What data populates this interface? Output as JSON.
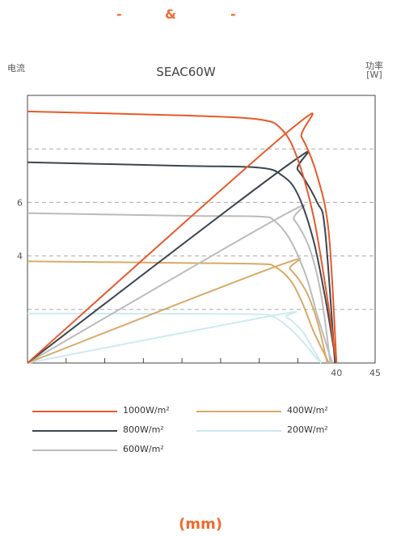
{
  "header": {
    "left": "-",
    "mid": "&",
    "right": "-"
  },
  "chart_data": {
    "type": "line",
    "title": "SEAC60W",
    "ylabel": "电流",
    "y2label": "功率\n[W]",
    "y_ticks": [
      {
        "value": 4,
        "label": "4"
      },
      {
        "value": 6,
        "label": "6"
      }
    ],
    "x_ticks": [
      {
        "value": 40,
        "label": "40"
      },
      {
        "value": 45,
        "label": "45"
      }
    ],
    "xlim": [
      0,
      45
    ],
    "ylim": [
      0,
      10
    ],
    "y2lim": [
      0,
      70
    ],
    "grid": "dashed-horizontal",
    "legend_placement": "bottom",
    "series": [
      {
        "name": "1000W/m²",
        "color": "#e8592a",
        "iv": [
          [
            0,
            9.4
          ],
          [
            20,
            9.25
          ],
          [
            30,
            9.1
          ],
          [
            33,
            8.7
          ],
          [
            35,
            7.6
          ],
          [
            37,
            5.5
          ],
          [
            38.5,
            3.0
          ],
          [
            39.5,
            1.0
          ],
          [
            40,
            0
          ]
        ],
        "pv": [
          [
            0,
            0
          ],
          [
            34,
            61
          ],
          [
            35.5,
            59
          ],
          [
            37.5,
            49
          ],
          [
            39,
            34
          ],
          [
            40,
            0
          ]
        ]
      },
      {
        "name": "800W/m²",
        "color": "#3a4650",
        "iv": [
          [
            0,
            7.5
          ],
          [
            20,
            7.37
          ],
          [
            30,
            7.3
          ],
          [
            33,
            7.0
          ],
          [
            35,
            6.3
          ],
          [
            37,
            4.6
          ],
          [
            38.5,
            2.5
          ],
          [
            39.5,
            0.8
          ],
          [
            40,
            0
          ]
        ],
        "pv": [
          [
            0,
            0
          ],
          [
            33.5,
            51.5
          ],
          [
            35,
            50.5
          ],
          [
            37.5,
            42
          ],
          [
            38.5,
            35
          ],
          [
            39.8,
            0
          ]
        ]
      },
      {
        "name": "600W/m²",
        "color": "#bbbbbb",
        "iv": [
          [
            0,
            5.6
          ],
          [
            20,
            5.5
          ],
          [
            30,
            5.47
          ],
          [
            32,
            5.3
          ],
          [
            34,
            4.6
          ],
          [
            36,
            3.3
          ],
          [
            37.5,
            1.8
          ],
          [
            39,
            0.4
          ],
          [
            39.5,
            0
          ]
        ],
        "pv": [
          [
            0,
            0
          ],
          [
            33,
            38.5
          ],
          [
            34.5,
            37.5
          ],
          [
            36.5,
            30
          ],
          [
            38,
            18
          ],
          [
            39.2,
            0
          ]
        ]
      },
      {
        "name": "400W/m²",
        "color": "#d8aa68",
        "iv": [
          [
            0,
            3.8
          ],
          [
            20,
            3.74
          ],
          [
            30,
            3.7
          ],
          [
            32,
            3.6
          ],
          [
            34,
            3.1
          ],
          [
            35.5,
            2.3
          ],
          [
            37,
            1.2
          ],
          [
            38.5,
            0.3
          ],
          [
            39,
            0
          ]
        ],
        "pv": [
          [
            0,
            0
          ],
          [
            32.5,
            25.5
          ],
          [
            34,
            24.5
          ],
          [
            36,
            19
          ],
          [
            37.5,
            11
          ],
          [
            38.8,
            0
          ]
        ]
      },
      {
        "name": "200W/m²",
        "color": "#cdeaf2",
        "iv": [
          [
            0,
            1.85
          ],
          [
            20,
            1.84
          ],
          [
            30,
            1.82
          ],
          [
            32,
            1.7
          ],
          [
            33.5,
            1.4
          ],
          [
            35,
            1.0
          ],
          [
            36.5,
            0.5
          ],
          [
            37.5,
            0.15
          ],
          [
            38,
            0
          ]
        ],
        "pv": [
          [
            0,
            0
          ],
          [
            32,
            12.5
          ],
          [
            33.5,
            12
          ],
          [
            35.5,
            8.5
          ],
          [
            37,
            3.5
          ],
          [
            38,
            0
          ]
        ]
      }
    ]
  },
  "footer": {
    "label": "(mm)"
  }
}
